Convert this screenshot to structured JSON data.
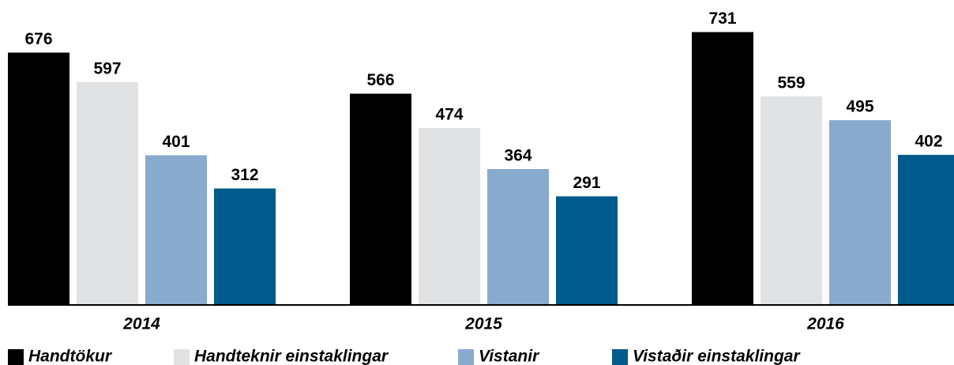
{
  "chart_data": {
    "type": "bar",
    "categories": [
      "2014",
      "2015",
      "2016"
    ],
    "series": [
      {
        "name": "Handtökur",
        "color": "#000000",
        "values": [
          676,
          566,
          731
        ]
      },
      {
        "name": "Handteknir einstaklingar",
        "color": "#e1e2e4",
        "values": [
          597,
          474,
          559
        ]
      },
      {
        "name": "Vistanir",
        "color": "#88aacd",
        "values": [
          401,
          364,
          495
        ]
      },
      {
        "name": "Vistaðir einstaklingar",
        "color": "#005a8c",
        "values": [
          312,
          291,
          402
        ]
      }
    ],
    "ylim": [
      0,
      800
    ],
    "legend": "bottom"
  }
}
